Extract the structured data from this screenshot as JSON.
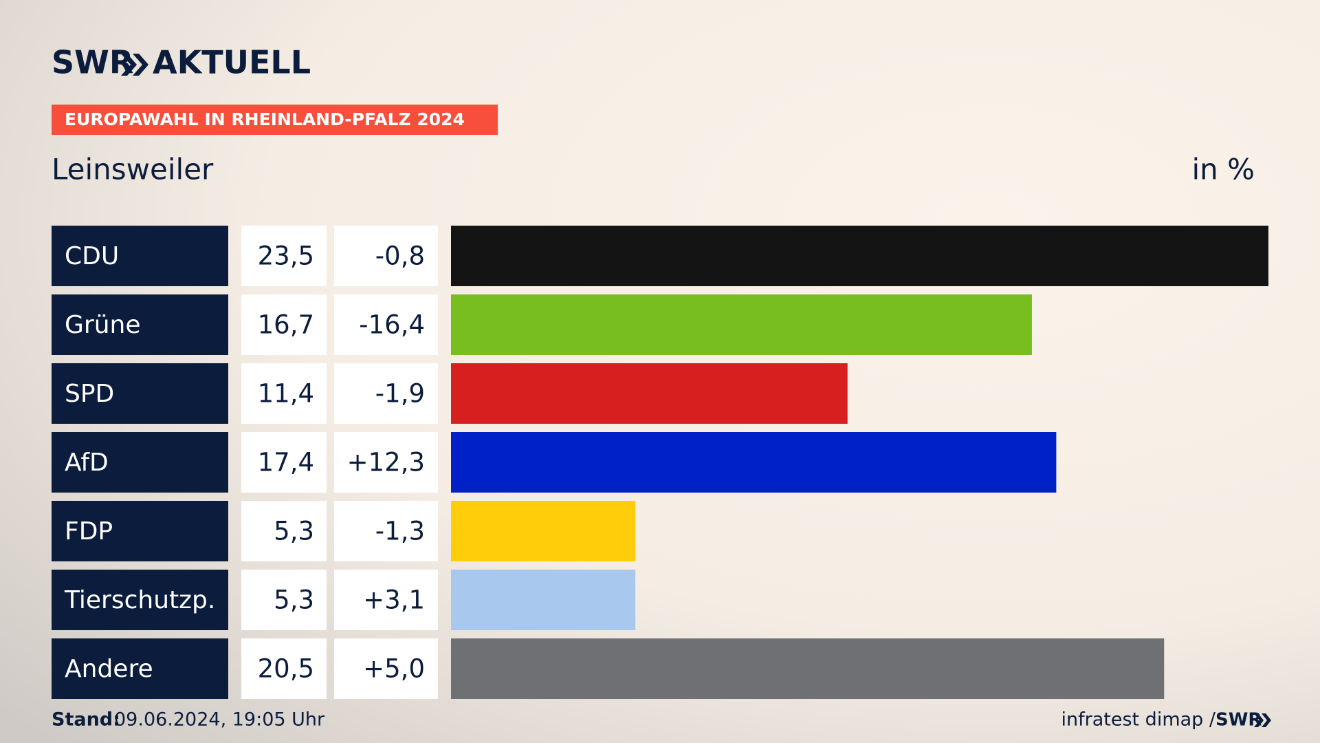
{
  "chart_data": {
    "type": "bar",
    "logo": "SWR",
    "logo_suffix": "AKTUELL",
    "banner": "EUROPAWAHL IN RHEINLAND-PFALZ 2024",
    "title": "Leinsweiler",
    "unit": "in %",
    "categories": [
      "CDU",
      "Grüne",
      "SPD",
      "AfD",
      "FDP",
      "Tierschutzp.",
      "Andere"
    ],
    "values": [
      23.5,
      16.7,
      11.4,
      17.4,
      5.3,
      5.3,
      20.5
    ],
    "value_labels": [
      "23,5",
      "16,7",
      "11,4",
      "17,4",
      "5,3",
      "5,3",
      "20,5"
    ],
    "changes": [
      -0.8,
      -16.4,
      -1.9,
      12.3,
      -1.3,
      3.1,
      5.0
    ],
    "change_labels": [
      "-0,8",
      "-16,4",
      "-1,9",
      "+12,3",
      "-1,3",
      "+3,1",
      "+5,0"
    ],
    "colors": [
      "#141414",
      "#78be1e",
      "#d71f1f",
      "#0020c8",
      "#ffcd0a",
      "#a9c8ee",
      "#6f7073"
    ],
    "footer_label": "Stand:",
    "footer_date": "09.06.2024, 19:05 Uhr",
    "source": "infratest dimap /",
    "source_logo": "SWR"
  }
}
